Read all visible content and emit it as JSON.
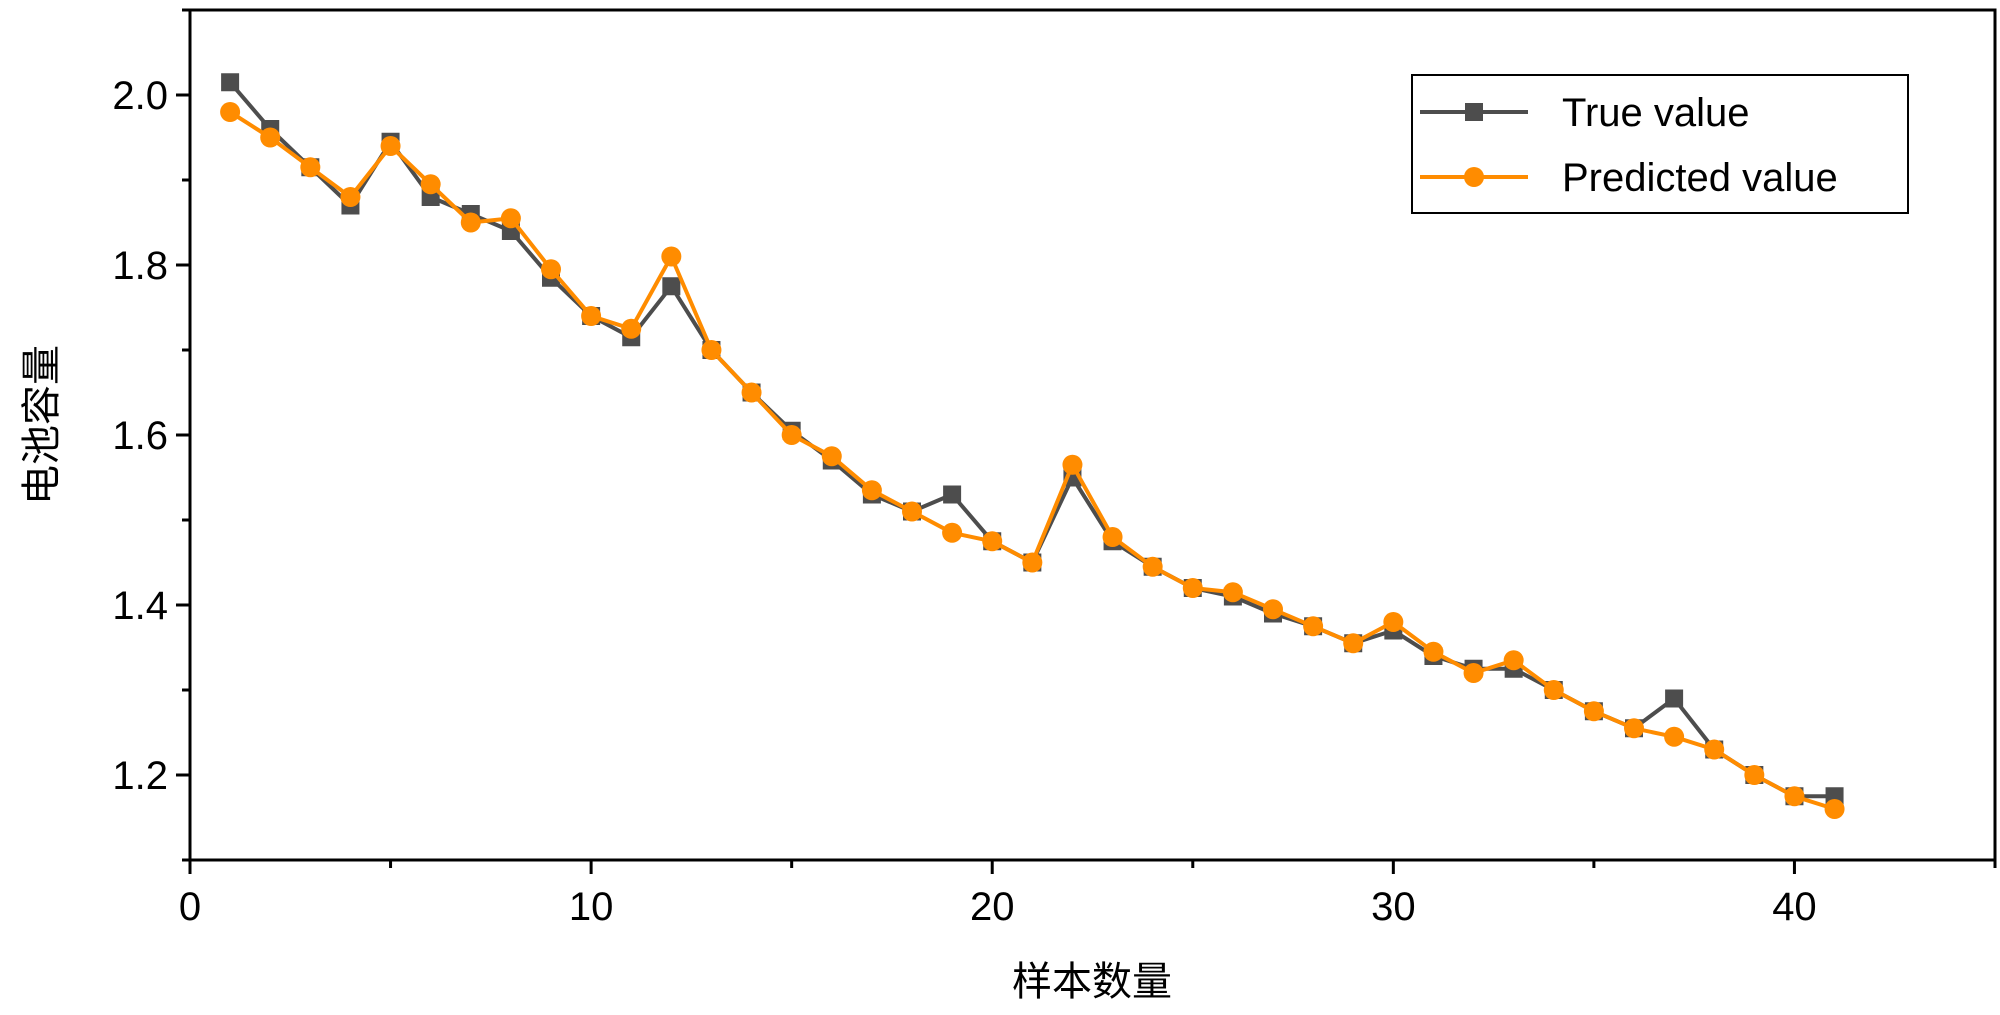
{
  "chart_data": {
    "type": "line",
    "title": "",
    "xlabel": "样本数量",
    "ylabel": "电池容量",
    "xlim": [
      0,
      45
    ],
    "ylim": [
      1.1,
      2.1
    ],
    "x_ticks": [
      0,
      10,
      20,
      30,
      40
    ],
    "x_tick_labels": [
      "0",
      "10",
      "20",
      "30",
      "40"
    ],
    "x_minor_ticks": [
      5,
      15,
      25,
      35,
      45
    ],
    "y_ticks": [
      1.2,
      1.4,
      1.6,
      1.8,
      2.0
    ],
    "y_tick_labels": [
      "1.2",
      "1.4",
      "1.6",
      "1.8",
      "2.0"
    ],
    "y_minor_ticks": [
      1.1,
      1.3,
      1.5,
      1.7,
      1.9,
      2.1
    ],
    "grid": false,
    "legend_position": "top-right",
    "x": [
      1,
      2,
      3,
      4,
      5,
      6,
      7,
      8,
      9,
      10,
      11,
      12,
      13,
      14,
      15,
      16,
      17,
      18,
      19,
      20,
      21,
      22,
      23,
      24,
      25,
      26,
      27,
      28,
      29,
      30,
      31,
      32,
      33,
      34,
      35,
      36,
      37,
      38,
      39,
      40,
      41
    ],
    "series": [
      {
        "name": "True value",
        "color": "#4d4d4d",
        "marker": "square",
        "values": [
          2.015,
          1.96,
          1.915,
          1.87,
          1.945,
          1.88,
          1.86,
          1.84,
          1.785,
          1.74,
          1.715,
          1.775,
          1.7,
          1.65,
          1.605,
          1.57,
          1.53,
          1.51,
          1.53,
          1.475,
          1.45,
          1.55,
          1.475,
          1.445,
          1.42,
          1.41,
          1.39,
          1.375,
          1.355,
          1.37,
          1.34,
          1.325,
          1.325,
          1.3,
          1.275,
          1.255,
          1.29,
          1.23,
          1.2,
          1.175,
          1.175
        ]
      },
      {
        "name": "Predicted value",
        "color": "#ff8c00",
        "marker": "circle",
        "values": [
          1.98,
          1.95,
          1.915,
          1.88,
          1.94,
          1.895,
          1.85,
          1.855,
          1.795,
          1.74,
          1.725,
          1.81,
          1.7,
          1.65,
          1.6,
          1.575,
          1.535,
          1.51,
          1.485,
          1.475,
          1.45,
          1.565,
          1.48,
          1.445,
          1.42,
          1.415,
          1.395,
          1.375,
          1.355,
          1.38,
          1.345,
          1.32,
          1.335,
          1.3,
          1.275,
          1.255,
          1.245,
          1.23,
          1.2,
          1.175,
          1.16
        ]
      }
    ]
  }
}
